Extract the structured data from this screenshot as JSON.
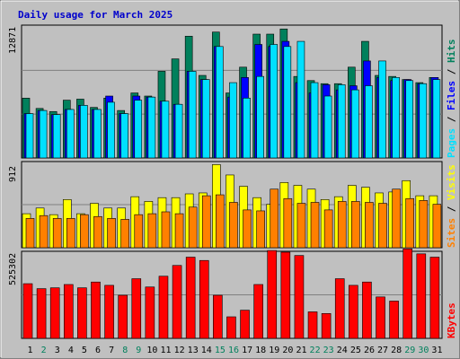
{
  "title": "Daily usage for March 2025",
  "colors": {
    "background": "#c0c0c0",
    "plot": "#c0c0c0",
    "hits": "#00805c",
    "files": "#0000ff",
    "pages": "#00e0ff",
    "sites": "#ff8000",
    "visits": "#ffff00",
    "kbytes": "#ff0000",
    "weekday": "#000000",
    "weekend": "#00805c",
    "title": "#0000cc"
  },
  "panels": {
    "top": {
      "max_label": "12871",
      "legend": {
        "pages": "Pages",
        "files": "Files",
        "hits": "Hits",
        "sep": " / "
      }
    },
    "middle": {
      "max_label": "912",
      "legend": {
        "sites": "Sites",
        "visits": "Visits",
        "sep": " / "
      }
    },
    "bottom": {
      "max_label": "525302",
      "legend": {
        "kbytes": "KBytes"
      }
    }
  },
  "chart_data": {
    "type": "bar",
    "title": "Daily usage for March 2025",
    "categories": [
      "1",
      "2",
      "3",
      "4",
      "5",
      "6",
      "7",
      "8",
      "9",
      "10",
      "11",
      "12",
      "13",
      "14",
      "15",
      "16",
      "17",
      "18",
      "19",
      "20",
      "21",
      "22",
      "23",
      "24",
      "25",
      "26",
      "27",
      "28",
      "29",
      "30",
      "31"
    ],
    "weekend_days": [
      2,
      8,
      9,
      15,
      16,
      22,
      23,
      29,
      30
    ],
    "charts": [
      {
        "name": "top",
        "ymax": 12871,
        "ylabel": "Pages / Files / Hits",
        "series": [
          {
            "name": "Hits",
            "values": [
              5800,
              4800,
              4500,
              5600,
              5700,
              4900,
              5800,
              4600,
              6300,
              6000,
              8400,
              9600,
              11800,
              8000,
              12200,
              6300,
              8800,
              12000,
              12000,
              12500,
              7900,
              7500,
              7200,
              7200,
              8800,
              11300,
              8000,
              7900,
              7600,
              7300,
              7800
            ]
          },
          {
            "name": "Files",
            "values": [
              4300,
              4600,
              4200,
              4700,
              5100,
              4700,
              6000,
              4300,
              6000,
              5900,
              5500,
              5200,
              8400,
              7600,
              10800,
              5900,
              7800,
              11000,
              10800,
              11300,
              7300,
              6300,
              7100,
              6600,
              7000,
              9400,
              7800,
              7500,
              7600,
              7200,
              7800
            ]
          },
          {
            "name": "Pages",
            "values": [
              4300,
              4600,
              4200,
              4700,
              5100,
              4700,
              5400,
              4300,
              5600,
              5900,
              5500,
              5200,
              8400,
              7600,
              10800,
              7300,
              5800,
              7900,
              11000,
              10800,
              11300,
              7300,
              6000,
              7100,
              6600,
              7000,
              9400,
              7800,
              7500,
              7200,
              7600
            ]
          }
        ]
      },
      {
        "name": "middle",
        "ymax": 912,
        "ylabel": "Sites / Visits",
        "series": [
          {
            "name": "Visits",
            "values": [
              360,
              420,
              350,
              510,
              360,
              470,
              420,
              420,
              540,
              490,
              530,
              530,
              570,
              580,
              880,
              770,
              650,
              530,
              460,
              690,
              660,
              620,
              510,
              540,
              660,
              640,
              580,
              590,
              710,
              550,
              550
            ]
          },
          {
            "name": "Sites",
            "values": [
              310,
              340,
              310,
              310,
              350,
              330,
              310,
              300,
              350,
              360,
              380,
              360,
              430,
              550,
              560,
              480,
              400,
              390,
              620,
              520,
              470,
              480,
              400,
              490,
              490,
              480,
              470,
              620,
              520,
              500,
              460
            ]
          }
        ]
      },
      {
        "name": "bottom",
        "ymax": 525302,
        "ylabel": "KBytes",
        "series": [
          {
            "name": "KBytes",
            "values": [
              330000,
              300000,
              305000,
              325000,
              305000,
              340000,
              320000,
              260000,
              360000,
              310000,
              375000,
              440000,
              490000,
              470000,
              260000,
              130000,
              170000,
              325000,
              530000,
              520000,
              500000,
              160000,
              150000,
              360000,
              320000,
              340000,
              250000,
              225000,
              540000,
              510000,
              490000
            ]
          }
        ]
      }
    ]
  }
}
